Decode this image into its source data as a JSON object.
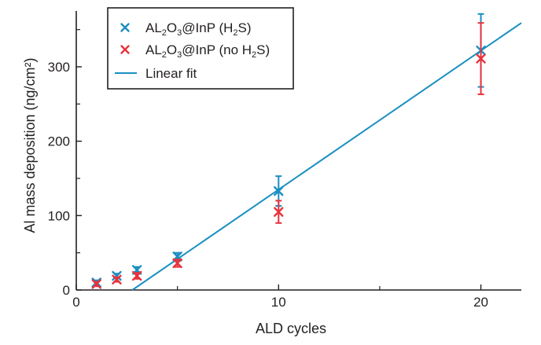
{
  "chart_data": {
    "type": "scatter",
    "xlabel": "ALD cycles",
    "ylabel": "Al mass deposition (ng/cm²)",
    "xlim": [
      0,
      22
    ],
    "ylim": [
      0,
      375
    ],
    "xticks": [
      0,
      10,
      20
    ],
    "xminor": [
      5,
      15
    ],
    "yticks": [
      0,
      100,
      200,
      300
    ],
    "legend_position": "top-left",
    "legend": [
      {
        "key": "h2s",
        "parts": [
          "AL",
          "2",
          "O",
          "3",
          "@InP (H",
          "2",
          "S)"
        ]
      },
      {
        "key": "no_h2s",
        "parts": [
          "AL",
          "2",
          "O",
          "3",
          "@InP (no H",
          "2",
          "S)"
        ]
      },
      {
        "key": "fit",
        "parts": [
          "Linear fit"
        ]
      }
    ],
    "series": [
      {
        "key": "h2s",
        "name": "AL2O3@InP (H2S)",
        "marker": "x",
        "color": "#1a8fc1",
        "x": [
          1,
          2,
          3,
          5,
          10,
          20
        ],
        "y": [
          10,
          19,
          27,
          45,
          133,
          322
        ],
        "yerr": [
          3,
          3,
          4,
          5,
          20,
          49
        ]
      },
      {
        "key": "no_h2s",
        "name": "AL2O3@InP (no H2S)",
        "marker": "x",
        "color": "#e8323c",
        "x": [
          1,
          2,
          3,
          5,
          10,
          20
        ],
        "y": [
          8,
          14,
          19,
          36,
          105,
          311
        ],
        "yerr": [
          3,
          3,
          4,
          5,
          15,
          48
        ]
      }
    ],
    "fit": {
      "key": "fit",
      "name": "Linear fit",
      "color": "#1a8fc1",
      "x": [
        2.77,
        22
      ],
      "y": [
        0,
        359
      ]
    }
  }
}
